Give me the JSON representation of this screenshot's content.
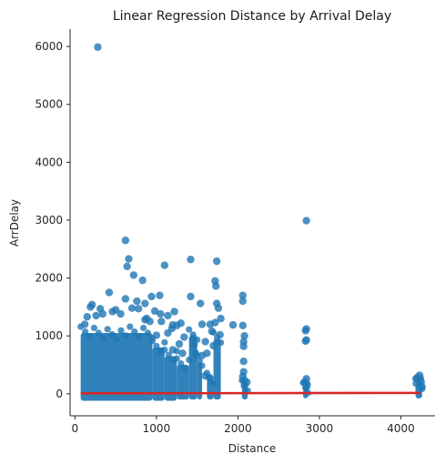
{
  "chart_data": {
    "type": "scatter",
    "title": "Linear Regression Distance by Arrival Delay",
    "xlabel": "Distance",
    "ylabel": "ArrDelay",
    "xlim": [
      -60,
      4420
    ],
    "ylim": [
      -380,
      6300
    ],
    "xticks": [
      "0",
      "1000",
      "2000",
      "3000",
      "4000"
    ],
    "xtick_values": [
      0,
      1000,
      2000,
      3000,
      4000
    ],
    "yticks": [
      "0",
      "1000",
      "2000",
      "3000",
      "4000",
      "5000",
      "6000"
    ],
    "ytick_values": [
      0,
      1000,
      2000,
      3000,
      4000,
      5000,
      6000
    ],
    "grid": false,
    "point_color": "#1f77b4",
    "line_color": "#d62728",
    "regression_line": {
      "x": [
        70,
        4240
      ],
      "y": [
        8,
        15
      ]
    },
    "dense_bands": [
      {
        "x": [
          70,
          950
        ],
        "y": [
          -120,
          1050
        ]
      },
      {
        "x": [
          950,
          1100
        ],
        "y": [
          -120,
          800
        ]
      },
      {
        "x": [
          1100,
          1250
        ],
        "y": [
          -120,
          650
        ]
      },
      {
        "x": [
          1250,
          1400
        ],
        "y": [
          -100,
          500
        ]
      },
      {
        "x": [
          1400,
          1500
        ],
        "y": [
          -100,
          1000
        ]
      },
      {
        "x": [
          1500,
          1560
        ],
        "y": [
          -100,
          550
        ]
      },
      {
        "x": [
          1620,
          1700
        ],
        "y": [
          -100,
          250
        ]
      },
      {
        "x": [
          1700,
          1790
        ],
        "y": [
          -100,
          950
        ]
      },
      {
        "x": [
          2050,
          2120
        ],
        "y": [
          -100,
          120
        ]
      },
      {
        "x": [
          2800,
          2860
        ],
        "y": [
          -80,
          80
        ]
      },
      {
        "x": [
          4180,
          4260
        ],
        "y": [
          -80,
          150
        ]
      }
    ],
    "points": [
      [
        280,
        5990
      ],
      [
        2840,
        2990
      ],
      [
        620,
        2650
      ],
      [
        660,
        2330
      ],
      [
        640,
        2200
      ],
      [
        720,
        2050
      ],
      [
        830,
        1960
      ],
      [
        1100,
        2220
      ],
      [
        1420,
        2320
      ],
      [
        1740,
        2290
      ],
      [
        1720,
        1950
      ],
      [
        1730,
        1860
      ],
      [
        2060,
        1700
      ],
      [
        2060,
        1600
      ],
      [
        2840,
        1120
      ],
      [
        2830,
        1090
      ],
      [
        2840,
        930
      ],
      [
        2830,
        910
      ],
      [
        420,
        1750
      ],
      [
        940,
        1680
      ],
      [
        1040,
        1700
      ],
      [
        1420,
        1680
      ],
      [
        1540,
        1560
      ],
      [
        760,
        1600
      ],
      [
        620,
        1640
      ],
      [
        210,
        1540
      ],
      [
        190,
        1500
      ],
      [
        310,
        1470
      ],
      [
        1220,
        1420
      ],
      [
        1760,
        1480
      ],
      [
        1740,
        1560
      ],
      [
        1790,
        1300
      ],
      [
        1940,
        1190
      ],
      [
        2060,
        1180
      ],
      [
        2080,
        1000
      ],
      [
        2070,
        900
      ],
      [
        2070,
        820
      ],
      [
        1660,
        1200
      ],
      [
        1560,
        1200
      ],
      [
        1300,
        1220
      ],
      [
        1250,
        1180
      ],
      [
        1200,
        1190
      ],
      [
        1140,
        1350
      ],
      [
        1050,
        1380
      ],
      [
        980,
        1430
      ],
      [
        860,
        1560
      ],
      [
        560,
        1380
      ],
      [
        1450,
        960
      ],
      [
        1460,
        850
      ],
      [
        1480,
        700
      ],
      [
        1680,
        1080
      ],
      [
        1720,
        1230
      ],
      [
        1780,
        1020
      ],
      [
        2840,
        260
      ],
      [
        2830,
        180
      ],
      [
        2840,
        110
      ],
      [
        4230,
        320
      ],
      [
        4240,
        260
      ],
      [
        4200,
        280
      ],
      [
        4250,
        200
      ],
      [
        2060,
        300
      ],
      [
        2070,
        560
      ],
      [
        2070,
        380
      ],
      [
        1600,
        310
      ],
      [
        1650,
        280
      ],
      [
        1140,
        1050
      ],
      [
        1190,
        1130
      ],
      [
        1060,
        1250
      ],
      [
        860,
        1280
      ],
      [
        1000,
        1010
      ],
      [
        1340,
        980
      ],
      [
        1280,
        860
      ],
      [
        1600,
        900
      ],
      [
        1700,
        830
      ],
      [
        1620,
        700
      ],
      [
        2080,
        230
      ],
      [
        2110,
        200
      ],
      [
        1200,
        760
      ],
      [
        1320,
        700
      ],
      [
        1560,
        660
      ],
      [
        120,
        1200
      ],
      [
        150,
        1330
      ],
      [
        260,
        1350
      ],
      [
        340,
        1380
      ],
      [
        460,
        1420
      ],
      [
        500,
        1450
      ],
      [
        700,
        1480
      ],
      [
        780,
        1470
      ],
      [
        880,
        1300
      ],
      [
        920,
        1250
      ],
      [
        2820,
        200
      ],
      [
        2850,
        160
      ],
      [
        4190,
        180
      ],
      [
        4260,
        120
      ],
      [
        2080,
        140
      ]
    ]
  }
}
